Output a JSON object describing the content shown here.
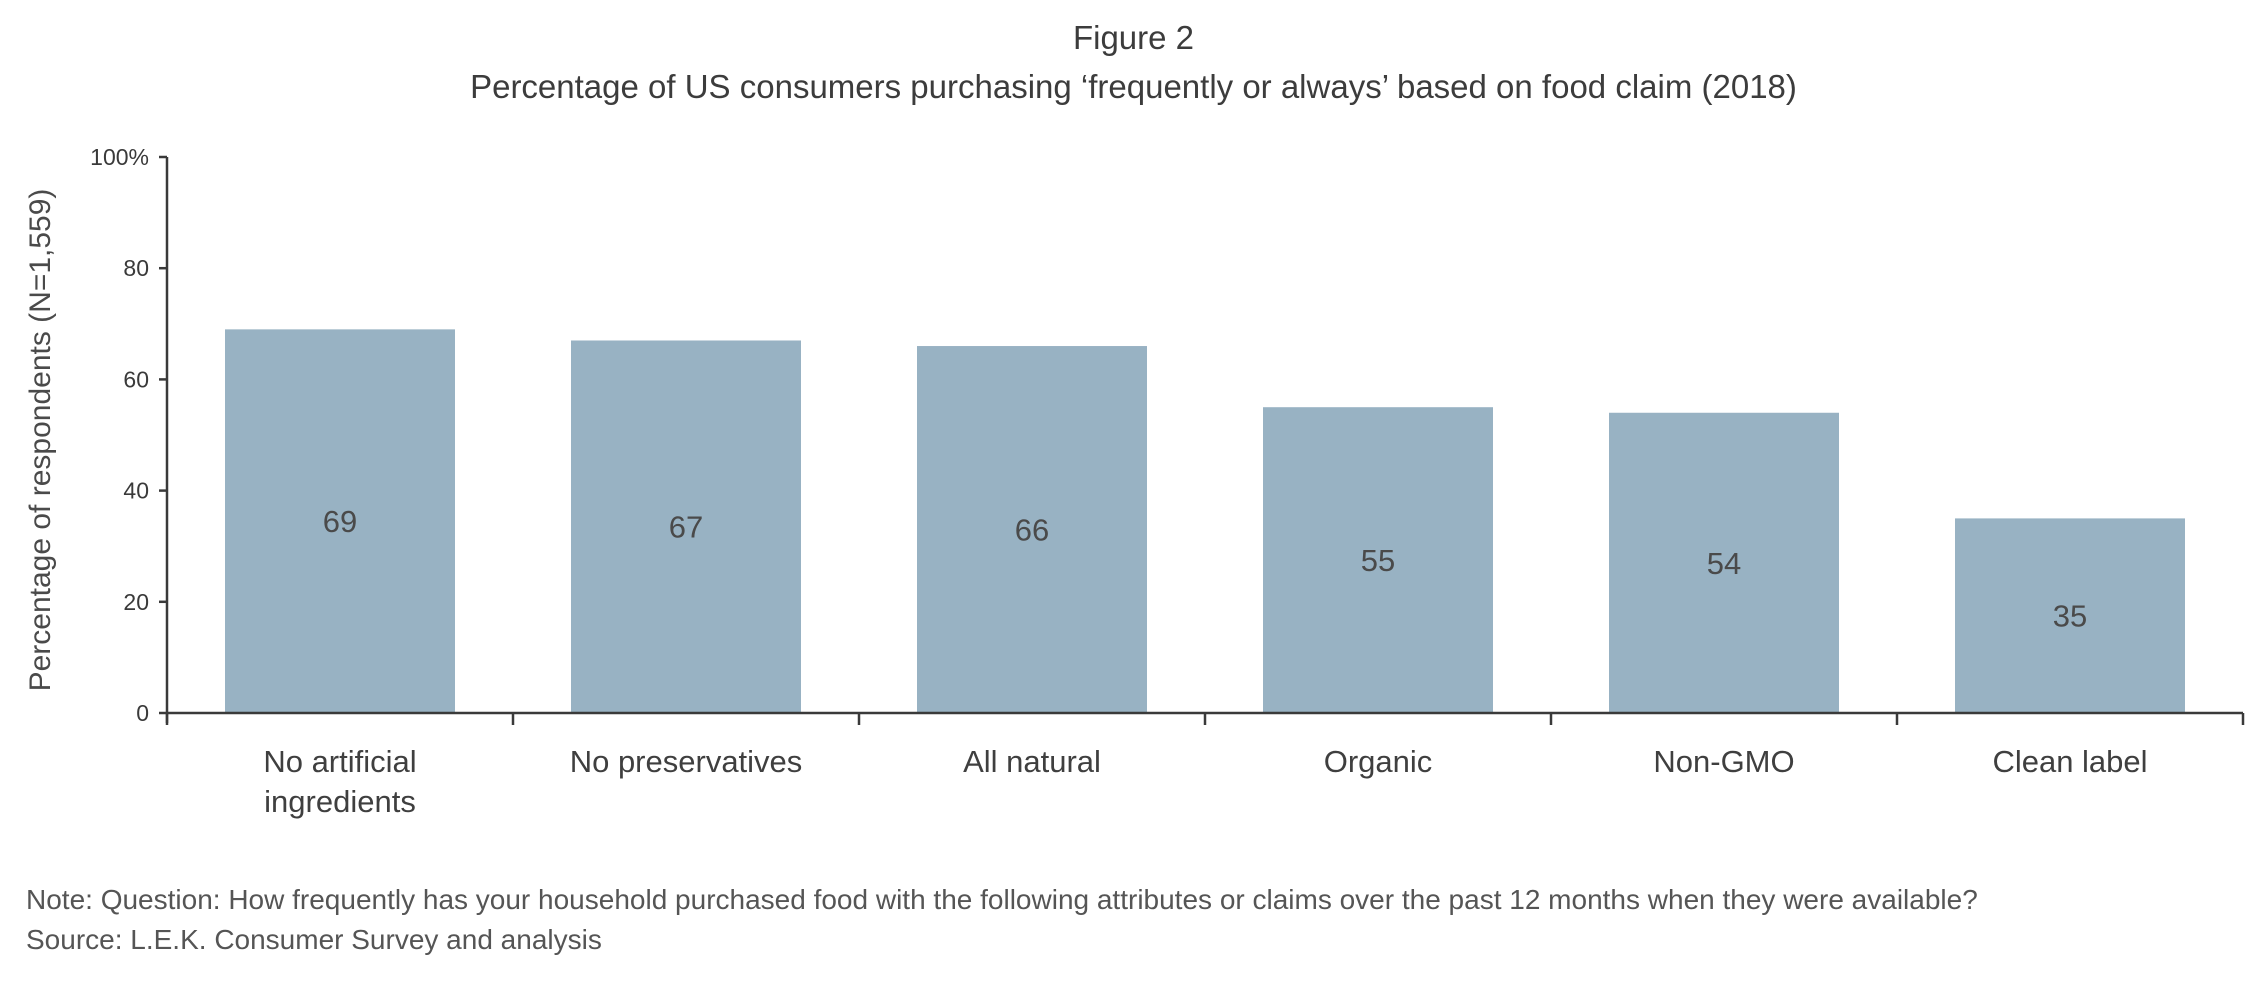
{
  "figure_label": "Figure 2",
  "chart_data": {
    "type": "bar",
    "title": "Percentage of US consumers purchasing ‘frequently or always’ based on food claim (2018)",
    "xlabel": "",
    "ylabel": "Percentage of respondents (N=1,559)",
    "ylim": [
      0,
      100
    ],
    "yticks": [
      {
        "value": 0,
        "label": "0"
      },
      {
        "value": 20,
        "label": "20"
      },
      {
        "value": 40,
        "label": "40"
      },
      {
        "value": 60,
        "label": "60"
      },
      {
        "value": 80,
        "label": "80"
      },
      {
        "value": 100,
        "label": "100%"
      }
    ],
    "categories": [
      [
        "No artificial",
        "ingredients"
      ],
      [
        "No preservatives"
      ],
      [
        "All natural"
      ],
      [
        "Organic"
      ],
      [
        "Non-GMO"
      ],
      [
        "Clean label"
      ]
    ],
    "values": [
      69,
      67,
      66,
      55,
      54,
      35
    ],
    "data_labels": [
      "69",
      "67",
      "66",
      "55",
      "54",
      "35"
    ],
    "bar_color": "#98b2c3",
    "axis_color": "#3a3a3a",
    "grid": false,
    "legend": "none"
  },
  "notes": {
    "question": "Note: Question: How frequently has your household purchased food with the following attributes or claims over the past 12 months when they were available?",
    "source": "Source: L.E.K. Consumer Survey and analysis"
  }
}
